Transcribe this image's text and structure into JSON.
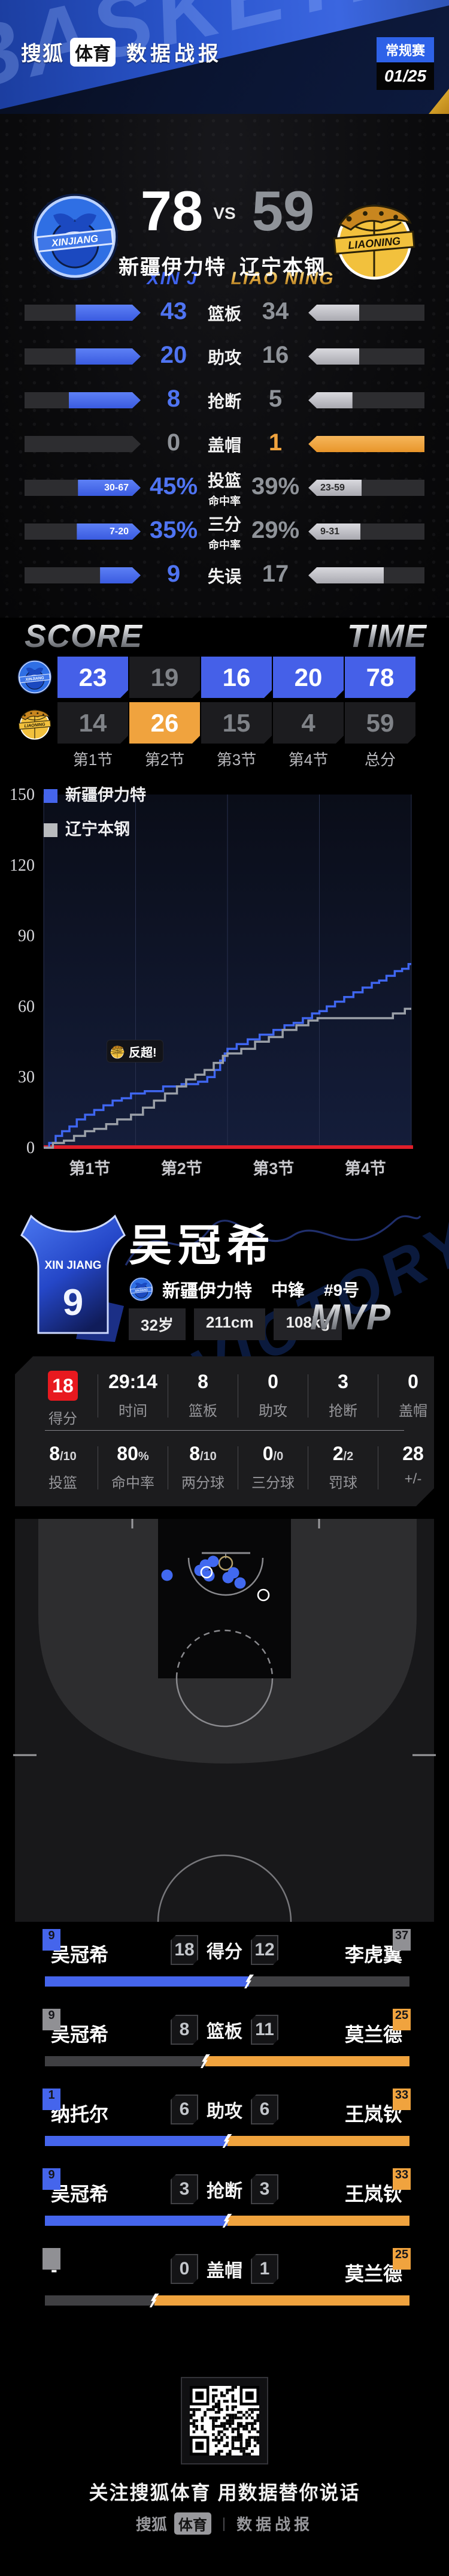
{
  "header": {
    "brand": {
      "sohu": "搜狐",
      "tiyu": "体育",
      "report": "数据战报"
    },
    "badge": {
      "stage": "常规赛",
      "date": "01/25"
    },
    "watermark": "BASKETBALL"
  },
  "scoreboard": {
    "home": {
      "score": "78",
      "name": "新疆伊力特",
      "en": "XIN J",
      "logo_text": "XINJIANG"
    },
    "vs": "VS",
    "away": {
      "score": "59",
      "name": "辽宁本钢",
      "en": "LIAO NING",
      "logo_text": "LIAONING"
    }
  },
  "team_stats": [
    {
      "label": [
        "篮板"
      ],
      "home": "43",
      "away": "34",
      "home_sub": "",
      "away_sub": "",
      "home_pct": 56,
      "away_pct": 44,
      "home_style": "blue",
      "away_style": "silver"
    },
    {
      "label": [
        "助攻"
      ],
      "home": "20",
      "away": "16",
      "home_sub": "",
      "away_sub": "",
      "home_pct": 56,
      "away_pct": 44,
      "home_style": "blue",
      "away_style": "silver"
    },
    {
      "label": [
        "抢断"
      ],
      "home": "8",
      "away": "5",
      "home_sub": "",
      "away_sub": "",
      "home_pct": 62,
      "away_pct": 38,
      "home_style": "blue",
      "away_style": "silver"
    },
    {
      "label": [
        "盖帽"
      ],
      "home": "0",
      "away": "1",
      "home_sub": "",
      "away_sub": "",
      "home_pct": 0,
      "away_pct": 100,
      "home_style": "none",
      "away_style": "orange"
    },
    {
      "label": [
        "投篮",
        "命中率"
      ],
      "home": "45%",
      "away": "39%",
      "home_sub": "30-67",
      "away_sub": "23-59",
      "home_pct": 54,
      "away_pct": 46,
      "home_style": "blue",
      "away_style": "silver"
    },
    {
      "label": [
        "三分",
        "命中率"
      ],
      "home": "35%",
      "away": "29%",
      "home_sub": "7-20",
      "away_sub": "9-31",
      "home_pct": 55,
      "away_pct": 45,
      "home_style": "blue",
      "away_style": "silver"
    },
    {
      "label": [
        "失误"
      ],
      "home": "9",
      "away": "17",
      "home_sub": "",
      "away_sub": "",
      "home_pct": 35,
      "away_pct": 65,
      "home_style": "blue",
      "away_style": "silver"
    }
  ],
  "section_titles": {
    "score": "SCORE",
    "time": "TIME"
  },
  "quarter_table": {
    "columns": [
      "第1节",
      "第2节",
      "第3节",
      "第4节",
      "总分"
    ],
    "home_cells": [
      {
        "v": "23",
        "s": "blue"
      },
      {
        "v": "19",
        "s": "dark"
      },
      {
        "v": "16",
        "s": "blue"
      },
      {
        "v": "20",
        "s": "blue"
      },
      {
        "v": "78",
        "s": "blue"
      }
    ],
    "away_cells": [
      {
        "v": "14",
        "s": "dark"
      },
      {
        "v": "26",
        "s": "orange"
      },
      {
        "v": "15",
        "s": "dark"
      },
      {
        "v": "4",
        "s": "dark"
      },
      {
        "v": "59",
        "s": "dark"
      }
    ]
  },
  "chart_data": {
    "type": "line",
    "subtype": "step-cumulative-score",
    "title": "",
    "legend": [
      {
        "label": "新疆伊力特",
        "color": "#4565ec"
      },
      {
        "label": "辽宁本钢",
        "color": "#b9bbbe"
      }
    ],
    "y_ticks": [
      150,
      120,
      90,
      60,
      30,
      0
    ],
    "ylim": [
      0,
      150
    ],
    "x_labels": [
      "第1节",
      "第2节",
      "第3节",
      "第4节"
    ],
    "xlim_quarters": [
      0,
      4
    ],
    "grid": "vertical-quarter-dividers",
    "baseline_color": "#e01e2a",
    "annotation": {
      "text": "反超!",
      "team": "辽宁本钢",
      "quarter_pos": 1.45,
      "score_level": 42
    },
    "quarter_totals": {
      "home": [
        23,
        19,
        16,
        20
      ],
      "away": [
        14,
        26,
        15,
        4
      ]
    },
    "cumulative_by_quarter": {
      "home": [
        23,
        42,
        58,
        78
      ],
      "away": [
        14,
        40,
        55,
        59
      ]
    },
    "series": [
      {
        "name": "新疆伊力特",
        "color": "#3f66f0",
        "points": [
          [
            0,
            0
          ],
          [
            0.06,
            2
          ],
          [
            0.13,
            5
          ],
          [
            0.2,
            7
          ],
          [
            0.28,
            9
          ],
          [
            0.36,
            12
          ],
          [
            0.45,
            14
          ],
          [
            0.55,
            16
          ],
          [
            0.65,
            18
          ],
          [
            0.75,
            20
          ],
          [
            0.85,
            21
          ],
          [
            0.95,
            23
          ],
          [
            1.1,
            24
          ],
          [
            1.3,
            26
          ],
          [
            1.5,
            27
          ],
          [
            1.68,
            28
          ],
          [
            1.78,
            30
          ],
          [
            1.86,
            33
          ],
          [
            1.92,
            37
          ],
          [
            1.97,
            40
          ],
          [
            2.0,
            42
          ],
          [
            2.1,
            44
          ],
          [
            2.22,
            46
          ],
          [
            2.35,
            48
          ],
          [
            2.5,
            50
          ],
          [
            2.62,
            52
          ],
          [
            2.72,
            53
          ],
          [
            2.82,
            55
          ],
          [
            2.92,
            57
          ],
          [
            3.0,
            58
          ],
          [
            3.08,
            60
          ],
          [
            3.17,
            62
          ],
          [
            3.27,
            64
          ],
          [
            3.37,
            66
          ],
          [
            3.47,
            68
          ],
          [
            3.57,
            70
          ],
          [
            3.65,
            71
          ],
          [
            3.73,
            73
          ],
          [
            3.82,
            75
          ],
          [
            3.9,
            76
          ],
          [
            3.97,
            78
          ]
        ]
      },
      {
        "name": "辽宁本钢",
        "color": "#9ba0a8",
        "points": [
          [
            0,
            0
          ],
          [
            0.1,
            2
          ],
          [
            0.22,
            3
          ],
          [
            0.33,
            5
          ],
          [
            0.45,
            7
          ],
          [
            0.55,
            8
          ],
          [
            0.68,
            10
          ],
          [
            0.8,
            12
          ],
          [
            0.95,
            14
          ],
          [
            1.08,
            17
          ],
          [
            1.2,
            20
          ],
          [
            1.32,
            23
          ],
          [
            1.45,
            26
          ],
          [
            1.55,
            29
          ],
          [
            1.65,
            31
          ],
          [
            1.75,
            33
          ],
          [
            1.85,
            36
          ],
          [
            1.95,
            39
          ],
          [
            2.0,
            40
          ],
          [
            2.15,
            42
          ],
          [
            2.3,
            45
          ],
          [
            2.45,
            47
          ],
          [
            2.6,
            50
          ],
          [
            2.75,
            52
          ],
          [
            2.88,
            54
          ],
          [
            2.98,
            55
          ],
          [
            3.8,
            57
          ],
          [
            3.93,
            59
          ]
        ]
      }
    ]
  },
  "mvp": {
    "name": "吴冠希",
    "team": "新疆伊力特",
    "position": "中锋",
    "number": "#9号",
    "chips": [
      "32岁",
      "211cm",
      "108kg"
    ],
    "award": "MVP",
    "jersey": {
      "team": "XIN JIANG",
      "number": "9"
    },
    "watermark": "VICTORY"
  },
  "player_stats": {
    "row1": [
      {
        "v": "18",
        "d": "",
        "l": "得分",
        "red": true
      },
      {
        "v": "29:14",
        "d": "",
        "l": "时间",
        "red": false
      },
      {
        "v": "8",
        "d": "",
        "l": "篮板",
        "red": false
      },
      {
        "v": "0",
        "d": "",
        "l": "助攻",
        "red": false
      },
      {
        "v": "3",
        "d": "",
        "l": "抢断",
        "red": false
      },
      {
        "v": "0",
        "d": "",
        "l": "盖帽",
        "red": false
      }
    ],
    "row2": [
      {
        "v": "8",
        "d": "/10",
        "l": "投篮",
        "red": false
      },
      {
        "v": "80",
        "d": "%",
        "l": "命中率",
        "red": false
      },
      {
        "v": "8",
        "d": "/10",
        "l": "两分球",
        "red": false
      },
      {
        "v": "0",
        "d": "/0",
        "l": "三分球",
        "red": false
      },
      {
        "v": "2",
        "d": "/2",
        "l": "罚球",
        "red": false
      },
      {
        "v": "28",
        "d": "",
        "l": "+/-",
        "red": false
      }
    ]
  },
  "shot_chart": {
    "made_color": "#4169f0",
    "made": [
      [
        279,
        94
      ],
      [
        334,
        86
      ],
      [
        343,
        77
      ],
      [
        349,
        95
      ],
      [
        356,
        71
      ],
      [
        381,
        98
      ],
      [
        390,
        90
      ],
      [
        401,
        107
      ]
    ],
    "missed": [
      [
        345,
        89
      ],
      [
        440,
        127
      ]
    ]
  },
  "duels": [
    {
      "label": "得分",
      "left": {
        "name": "吴冠希",
        "num": "9",
        "badge": "#4565ec",
        "val": "18"
      },
      "right": {
        "name": "李虎翼",
        "num": "37",
        "badge": "#909094",
        "val": "12"
      },
      "left_pct": 56,
      "left_color": "#4565ec",
      "right_color": "#3f3f42"
    },
    {
      "label": "篮板",
      "left": {
        "name": "吴冠希",
        "num": "9",
        "badge": "#909094",
        "val": "8"
      },
      "right": {
        "name": "莫兰德",
        "num": "25",
        "badge": "#f0a33e",
        "val": "11"
      },
      "left_pct": 44,
      "left_color": "#3f3f42",
      "right_color": "#f0a33e"
    },
    {
      "label": "助攻",
      "left": {
        "name": "纳托尔",
        "num": "1",
        "badge": "#4565ec",
        "val": "6"
      },
      "right": {
        "name": "王岚钦",
        "num": "33",
        "badge": "#f0a33e",
        "val": "6"
      },
      "left_pct": 50,
      "left_color": "#4565ec",
      "right_color": "#f0a33e"
    },
    {
      "label": "抢断",
      "left": {
        "name": "吴冠希",
        "num": "9",
        "badge": "#4565ec",
        "val": "3"
      },
      "right": {
        "name": "王岚钦",
        "num": "33",
        "badge": "#f0a33e",
        "val": "3"
      },
      "left_pct": 50,
      "left_color": "#4565ec",
      "right_color": "#f0a33e"
    },
    {
      "label": "盖帽",
      "left": {
        "name": "-",
        "num": "",
        "badge": "#909094",
        "val": "0"
      },
      "right": {
        "name": "莫兰德",
        "num": "25",
        "badge": "#f0a33e",
        "val": "1"
      },
      "left_pct": 30,
      "left_color": "#3f3f42",
      "right_color": "#f0a33e"
    }
  ],
  "footer": {
    "tagline": "关注搜狐体育 用数据替你说话",
    "brand": {
      "sohu": "搜狐",
      "tiyu": "体育",
      "report": "数据战报"
    }
  },
  "colors": {
    "home_blue": "#4565ec",
    "away_silver": "#c6c6cb",
    "away_orange": "#f0a33e",
    "red_badge": "#e8191f",
    "cell_dark": "#1c1c1f"
  }
}
